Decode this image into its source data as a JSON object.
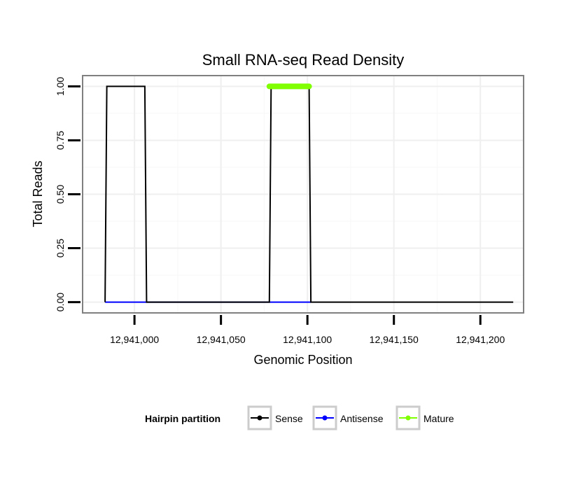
{
  "chart_data": {
    "type": "line",
    "title": "Small RNA-seq Read Density",
    "xlabel": "Genomic Position",
    "ylabel": "Total Reads",
    "xlim": [
      12940970,
      12941225
    ],
    "ylim": [
      -0.05,
      1.05
    ],
    "x_ticks": [
      12941000,
      12941050,
      12941100,
      12941150,
      12941200
    ],
    "x_tick_labels": [
      "12,941,000",
      "12,941,050",
      "12,941,100",
      "12,941,150",
      "12,941,200"
    ],
    "y_ticks": [
      0,
      0.25,
      0.5,
      0.75,
      1
    ],
    "y_tick_labels": [
      "0.00",
      "0.25",
      "0.50",
      "0.75",
      "1.00"
    ],
    "grid": true,
    "legend_position": "bottom",
    "legend_title": "Hairpin partition",
    "series": [
      {
        "name": "Sense",
        "color": "#000000",
        "x": [
          12940983,
          12940984,
          12941006,
          12941007,
          12941078,
          12941079,
          12941101,
          12941102,
          12941219
        ],
        "y": [
          0,
          1,
          1,
          0,
          0,
          1,
          1,
          0,
          0
        ]
      },
      {
        "name": "Antisense",
        "color": "#0000ff",
        "x": [
          12940983,
          12941007,
          12941078,
          12941102
        ],
        "y": [
          0,
          0,
          0,
          0
        ]
      },
      {
        "name": "Mature",
        "color": "#7fff00",
        "x": [
          12941078,
          12941101
        ],
        "y": [
          1,
          1
        ]
      }
    ]
  }
}
